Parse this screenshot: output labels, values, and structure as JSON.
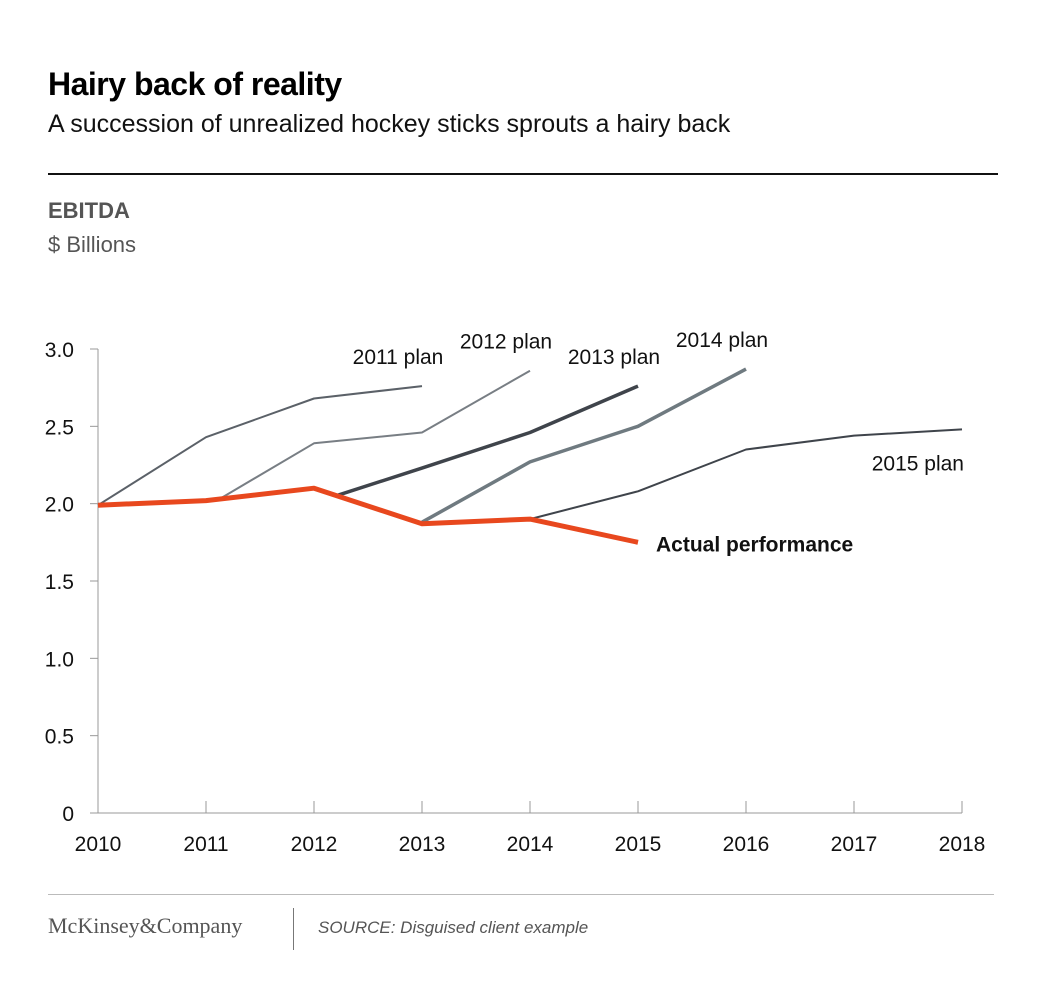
{
  "header": {
    "title": "Hairy back of reality",
    "subtitle": "A succession of unrealized hockey sticks sprouts a hairy back"
  },
  "metric_label": "EBITDA",
  "unit_label": "$ Billions",
  "footer": {
    "brand": "McKinsey&Company",
    "source": "SOURCE: Disguised client example"
  },
  "colors": {
    "actual": "#e8481e",
    "plan_dark": "#3f444b",
    "plan_mid": "#5b6168",
    "plan_light": "#787e84",
    "plan_steel": "#6f7a80",
    "axis": "#999999"
  },
  "chart_data": {
    "type": "line",
    "title": "Hairy back of reality",
    "subtitle": "A succession of unrealized hockey sticks sprouts a hairy back",
    "ylabel": "EBITDA, $ Billions",
    "xlabel": "",
    "x_ticks": [
      "2010",
      "2011",
      "2012",
      "2013",
      "2014",
      "2015",
      "2016",
      "2017",
      "2018"
    ],
    "y_ticks": [
      "0",
      "0.5",
      "1.0",
      "1.5",
      "2.0",
      "2.5",
      "3.0"
    ],
    "xlim": [
      2010,
      2018
    ],
    "ylim": [
      0,
      3.0
    ],
    "grid": false,
    "series": [
      {
        "name": "2011 plan",
        "label_pos": "above-end",
        "color_key": "plan_mid",
        "width": 2,
        "points": [
          [
            2010,
            1.99
          ],
          [
            2011,
            2.43
          ],
          [
            2012,
            2.68
          ],
          [
            2013,
            2.76
          ]
        ]
      },
      {
        "name": "2012 plan",
        "label_pos": "above-end",
        "color_key": "plan_light",
        "width": 2,
        "points": [
          [
            2011.1,
            2.02
          ],
          [
            2012,
            2.39
          ],
          [
            2013,
            2.46
          ],
          [
            2014,
            2.86
          ]
        ]
      },
      {
        "name": "2013 plan",
        "label_pos": "above-end",
        "color_key": "plan_dark",
        "width": 3.5,
        "points": [
          [
            2012.2,
            2.05
          ],
          [
            2013,
            2.23
          ],
          [
            2014,
            2.46
          ],
          [
            2015,
            2.76
          ]
        ]
      },
      {
        "name": "2014 plan",
        "label_pos": "above-end",
        "color_key": "plan_steel",
        "width": 3.5,
        "points": [
          [
            2013,
            1.88
          ],
          [
            2014,
            2.27
          ],
          [
            2015,
            2.5
          ],
          [
            2016,
            2.87
          ]
        ]
      },
      {
        "name": "2015 plan",
        "label_pos": "below-end",
        "color_key": "plan_dark",
        "width": 2,
        "points": [
          [
            2014,
            1.9
          ],
          [
            2015,
            2.08
          ],
          [
            2016,
            2.35
          ],
          [
            2017,
            2.44
          ],
          [
            2018,
            2.48
          ]
        ]
      },
      {
        "name": "Actual performance",
        "label_pos": "right-end",
        "color_key": "actual",
        "width": 5,
        "bold": true,
        "points": [
          [
            2010,
            1.99
          ],
          [
            2011,
            2.02
          ],
          [
            2012,
            2.1
          ],
          [
            2013,
            1.87
          ],
          [
            2014,
            1.9
          ],
          [
            2015,
            1.75
          ]
        ]
      }
    ]
  }
}
